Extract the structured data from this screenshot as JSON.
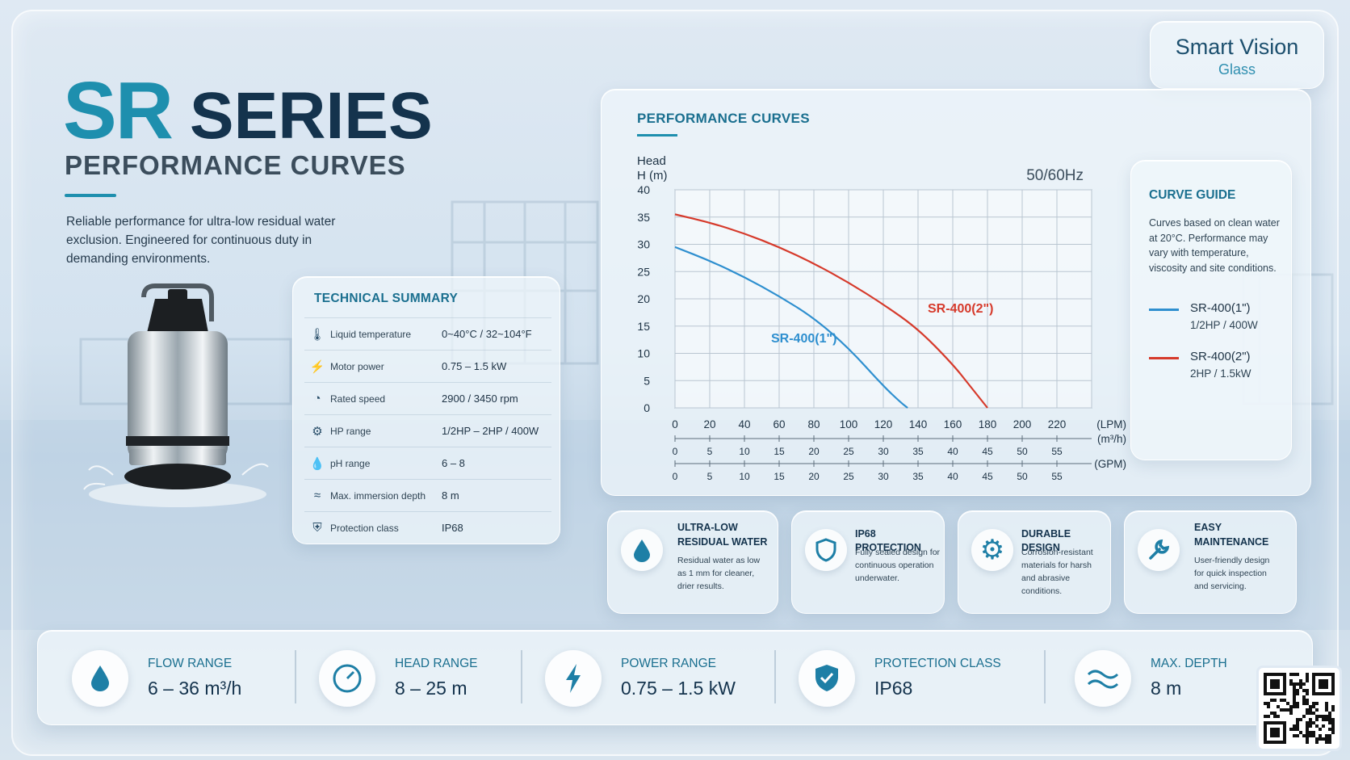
{
  "brand": {
    "name": "Smart Vision",
    "sub": "Glass"
  },
  "header": {
    "title_accent": "SR",
    "title_main": "SERIES",
    "subtitle": "PERFORMANCE CURVES",
    "intro": "Reliable performance for ultra-low residual water exclusion. Engineered for continuous duty in demanding environments."
  },
  "tech": {
    "title": "TECHNICAL SUMMARY",
    "rows": [
      {
        "icon": "thermometer-icon",
        "label": "Liquid temperature",
        "value": "0~40°C / 32~104°F"
      },
      {
        "icon": "lightning-icon",
        "label": "Motor power",
        "value": "0.75 – 1.5 kW"
      },
      {
        "icon": "speedometer-icon",
        "label": "Rated speed",
        "value": "2900 / 3450 rpm"
      },
      {
        "icon": "motor-icon",
        "label": "HP range",
        "value": "1/2HP – 2HP / 400W"
      },
      {
        "icon": "droplet-icon",
        "label": "pH range",
        "value": "6 – 8"
      },
      {
        "icon": "wave-icon",
        "label": "Max. immersion depth",
        "value": "8 m"
      },
      {
        "icon": "shield-icon",
        "label": "Protection class",
        "value": "IP68"
      }
    ]
  },
  "chart_panel": {
    "title": "PERFORMANCE CURVES",
    "frequency": "50/60Hz",
    "y_label_1": "Head",
    "y_label_2": "H (m)"
  },
  "chart_data": {
    "type": "line",
    "title": "PERFORMANCE CURVES",
    "ylabel": "Head H (m)",
    "annotation": "50/60Hz",
    "xlabel": "(LPM)",
    "xlim": [
      0,
      240
    ],
    "ylim": [
      0,
      40
    ],
    "x_ticks": [
      0,
      20,
      40,
      60,
      80,
      100,
      120,
      140,
      160,
      180,
      200,
      220
    ],
    "x_unit": "(LPM)",
    "y_ticks": [
      0,
      5,
      10,
      15,
      20,
      25,
      30,
      35,
      40
    ],
    "secondary_axes": [
      {
        "unit": "(m³/h)",
        "ticks": [
          "0",
          "5",
          "10",
          "15",
          "20",
          "25",
          "30",
          "35",
          "40",
          "45",
          "50",
          "55"
        ]
      },
      {
        "unit": "(GPM)",
        "ticks": [
          "0",
          "5",
          "10",
          "15",
          "20",
          "25",
          "30",
          "35",
          "40",
          "45",
          "50",
          "55"
        ]
      }
    ],
    "grid": true,
    "series": [
      {
        "name": "SR-400(1\")",
        "color": "#2e8fcf",
        "x": [
          0,
          20,
          40,
          60,
          80,
          100,
          120,
          130,
          134
        ],
        "y": [
          29.5,
          27,
          24,
          20.5,
          16.5,
          11,
          4,
          1,
          0
        ]
      },
      {
        "name": "SR-400(2\")",
        "color": "#d63a2b",
        "x": [
          0,
          20,
          40,
          60,
          80,
          100,
          120,
          140,
          160,
          170,
          180
        ],
        "y": [
          35.5,
          34,
          32,
          29.5,
          26.5,
          23,
          19,
          14.5,
          8,
          4,
          0
        ]
      }
    ]
  },
  "guide": {
    "title": "CURVE GUIDE",
    "text": "Curves based on clean water at 20°C. Performance may vary with temperature, viscosity and site conditions.",
    "items": [
      {
        "name": "SR-400(1\")",
        "spec": "1/2HP / 400W",
        "color": "#2e8fcf"
      },
      {
        "name": "SR-400(2\")",
        "spec": "2HP / 1.5kW",
        "color": "#d63a2b"
      }
    ]
  },
  "features": [
    {
      "icon": "droplet-icon",
      "title1": "ULTRA-LOW",
      "title2": "RESIDUAL WATER",
      "d1": "Residual water as low",
      "d2": "as 1 mm for cleaner,",
      "d3": "drier results."
    },
    {
      "icon": "shield-icon",
      "title1": "IP68 PROTECTION",
      "title2": "",
      "d1": "Fully sealed design for",
      "d2": "continuous operation",
      "d3": "underwater."
    },
    {
      "icon": "gear-icon",
      "title1": "DURABLE DESIGN",
      "title2": "",
      "d1": "Corrosion-resistant",
      "d2": "materials for harsh",
      "d3": "and abrasive conditions."
    },
    {
      "icon": "wrench-icon",
      "title1": "EASY",
      "title2": "MAINTENANCE",
      "d1": "User-friendly design",
      "d2": "for quick inspection",
      "d3": "and servicing."
    }
  ],
  "stats": [
    {
      "icon": "droplet-icon",
      "label": "FLOW RANGE",
      "value": "6 – 36 m³/h"
    },
    {
      "icon": "gauge-icon",
      "label": "HEAD RANGE",
      "value": "8 – 25 m"
    },
    {
      "icon": "lightning-icon",
      "label": "POWER RANGE",
      "value": "0.75 – 1.5 kW"
    },
    {
      "icon": "shield-icon",
      "label": "PROTECTION CLASS",
      "value": "IP68"
    },
    {
      "icon": "wave-icon",
      "label": "MAX. DEPTH",
      "value": "8 m"
    }
  ]
}
